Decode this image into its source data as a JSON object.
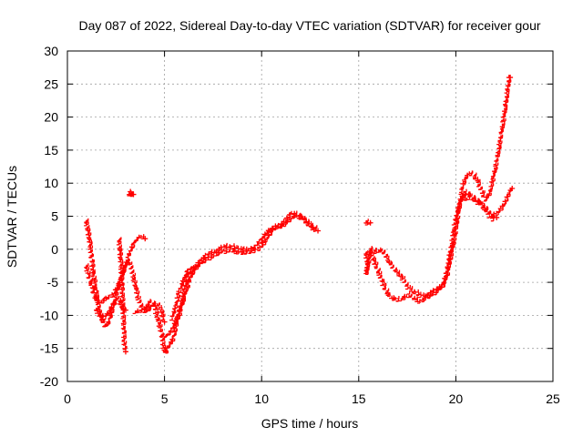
{
  "chart_data": {
    "type": "scatter",
    "title": "Day 087 of 2022, Sidereal Day-to-day VTEC variation (SDTVAR) for receiver gour",
    "xlabel": "GPS time / hours",
    "ylabel": "SDTVAR / TECUs",
    "xlim": [
      0,
      25
    ],
    "ylim": [
      -20,
      30
    ],
    "xticks": [
      0,
      5,
      10,
      15,
      20,
      25
    ],
    "yticks": [
      -20,
      -15,
      -10,
      -5,
      0,
      5,
      10,
      15,
      20,
      25,
      30
    ],
    "xtick_labels": [
      "0",
      "5",
      "10",
      "15",
      "20",
      "25"
    ],
    "ytick_labels": [
      "-20",
      "-15",
      "-10",
      "-5",
      "0",
      "5",
      "10",
      "15",
      "20",
      "25",
      "30"
    ],
    "grid": true,
    "marker": "plus",
    "color": "#ff0000",
    "series": [
      {
        "name": "track-a",
        "points": [
          [
            1.0,
            4.3
          ],
          [
            1.1,
            3.0
          ],
          [
            1.2,
            1.0
          ],
          [
            1.3,
            -1.5
          ],
          [
            1.4,
            -4.0
          ],
          [
            1.5,
            -6.0
          ],
          [
            1.6,
            -8.0
          ],
          [
            1.7,
            -9.5
          ],
          [
            1.8,
            -10.5
          ],
          [
            1.9,
            -11.3
          ],
          [
            2.0,
            -11.8
          ],
          [
            2.1,
            -11.5
          ],
          [
            2.2,
            -10.8
          ],
          [
            2.3,
            -10.0
          ],
          [
            2.4,
            -9.0
          ],
          [
            2.5,
            -8.0
          ],
          [
            2.6,
            -7.5
          ],
          [
            2.7,
            -7.8
          ],
          [
            2.8,
            -8.5
          ],
          [
            2.9,
            -9.0
          ],
          [
            3.0,
            -9.2
          ]
        ]
      },
      {
        "name": "track-b",
        "points": [
          [
            1.0,
            -2.5
          ],
          [
            1.1,
            -3.5
          ],
          [
            1.2,
            -4.5
          ],
          [
            1.3,
            -5.5
          ],
          [
            1.4,
            -6.5
          ],
          [
            1.5,
            -7.5
          ],
          [
            1.6,
            -7.8
          ],
          [
            1.7,
            -8.0
          ],
          [
            1.8,
            -8.0
          ],
          [
            1.9,
            -7.8
          ],
          [
            2.0,
            -7.5
          ],
          [
            2.2,
            -7.2
          ],
          [
            2.4,
            -7.0
          ],
          [
            2.6,
            -6.0
          ],
          [
            2.8,
            -4.5
          ],
          [
            3.0,
            -3.0
          ],
          [
            3.2,
            -1.0
          ],
          [
            3.4,
            0.5
          ],
          [
            3.6,
            1.5
          ],
          [
            3.8,
            1.8
          ],
          [
            4.0,
            1.6
          ]
        ]
      },
      {
        "name": "track-c",
        "points": [
          [
            1.5,
            -9.0
          ],
          [
            1.7,
            -10.0
          ],
          [
            1.9,
            -10.5
          ],
          [
            2.1,
            -10.0
          ],
          [
            2.3,
            -9.0
          ],
          [
            2.5,
            -7.5
          ],
          [
            2.7,
            -5.5
          ],
          [
            2.9,
            -3.5
          ],
          [
            3.1,
            -2.0
          ],
          [
            3.3,
            -2.5
          ],
          [
            3.5,
            -5.0
          ],
          [
            3.7,
            -7.5
          ],
          [
            3.9,
            -9.0
          ],
          [
            4.1,
            -9.5
          ],
          [
            4.3,
            -9.0
          ],
          [
            4.5,
            -8.5
          ],
          [
            4.7,
            -8.5
          ],
          [
            4.9,
            -9.5
          ],
          [
            5.0,
            -11.0
          ]
        ]
      },
      {
        "name": "track-d",
        "points": [
          [
            3.5,
            -9.5
          ],
          [
            3.7,
            -9.5
          ],
          [
            3.9,
            -9.4
          ],
          [
            4.1,
            -9.0
          ],
          [
            4.3,
            -8.0
          ],
          [
            4.5,
            -8.5
          ],
          [
            4.7,
            -10.5
          ],
          [
            4.9,
            -13.0
          ],
          [
            5.0,
            -15.0
          ],
          [
            5.1,
            -15.8
          ],
          [
            5.2,
            -15.0
          ],
          [
            5.3,
            -14.5
          ],
          [
            5.5,
            -13.5
          ],
          [
            5.7,
            -11.0
          ],
          [
            5.9,
            -9.0
          ],
          [
            6.1,
            -7.0
          ],
          [
            6.3,
            -5.0
          ],
          [
            6.5,
            -3.5
          ],
          [
            6.7,
            -2.8
          ],
          [
            7.0,
            -2.0
          ],
          [
            7.3,
            -1.5
          ],
          [
            7.6,
            -1.0
          ],
          [
            8.0,
            -0.5
          ],
          [
            8.4,
            -0.2
          ],
          [
            8.8,
            -0.5
          ],
          [
            9.2,
            -0.6
          ],
          [
            9.6,
            -0.4
          ],
          [
            10.0,
            0.2
          ],
          [
            10.3,
            1.5
          ],
          [
            10.6,
            2.8
          ],
          [
            10.9,
            3.3
          ],
          [
            11.2,
            3.5
          ],
          [
            11.5,
            4.5
          ],
          [
            11.8,
            5.0
          ],
          [
            12.2,
            4.5
          ],
          [
            12.6,
            3.5
          ],
          [
            12.9,
            2.8
          ]
        ]
      },
      {
        "name": "track-e",
        "points": [
          [
            5.0,
            -13.5
          ],
          [
            5.2,
            -13.0
          ],
          [
            5.4,
            -12.5
          ],
          [
            5.6,
            -11.0
          ],
          [
            5.8,
            -9.5
          ],
          [
            6.0,
            -7.0
          ],
          [
            6.2,
            -4.5
          ],
          [
            6.4,
            -3.5
          ],
          [
            6.7,
            -2.5
          ],
          [
            7.0,
            -1.5
          ],
          [
            7.3,
            -0.8
          ],
          [
            7.7,
            -0.3
          ],
          [
            8.0,
            0.2
          ],
          [
            8.4,
            0.4
          ],
          [
            8.8,
            0.0
          ],
          [
            9.2,
            -0.2
          ],
          [
            9.6,
            0.0
          ],
          [
            10.0,
            1.2
          ],
          [
            10.3,
            2.5
          ],
          [
            10.6,
            3.2
          ],
          [
            10.9,
            3.4
          ],
          [
            11.2,
            4.0
          ],
          [
            11.5,
            5.2
          ],
          [
            11.8,
            5.3
          ],
          [
            12.1,
            4.8
          ],
          [
            12.4,
            4.0
          ],
          [
            12.7,
            3.0
          ]
        ]
      },
      {
        "name": "track-f",
        "points": [
          [
            5.4,
            -10.5
          ],
          [
            5.6,
            -9.0
          ],
          [
            5.8,
            -6.5
          ],
          [
            6.0,
            -5.0
          ],
          [
            6.2,
            -3.5
          ],
          [
            6.5,
            -2.8
          ]
        ]
      },
      {
        "name": "track-g",
        "points": [
          [
            2.7,
            1.5
          ],
          [
            2.75,
            0.0
          ],
          [
            2.8,
            -2.0
          ],
          [
            2.85,
            -5.0
          ],
          [
            2.9,
            -8.0
          ],
          [
            2.95,
            -12.0
          ],
          [
            3.0,
            -15.5
          ]
        ]
      },
      {
        "name": "track-h",
        "points": [
          [
            3.2,
            8.5
          ],
          [
            3.25,
            8.2
          ],
          [
            3.3,
            8.6
          ],
          [
            3.35,
            8.0
          ],
          [
            3.4,
            8.3
          ]
        ]
      },
      {
        "name": "track-i",
        "points": [
          [
            15.4,
            4.2
          ],
          [
            15.5,
            3.8
          ],
          [
            15.6,
            4.0
          ]
        ]
      },
      {
        "name": "track-j",
        "points": [
          [
            15.4,
            -0.5
          ],
          [
            15.5,
            -2.0
          ],
          [
            15.45,
            -3.8
          ],
          [
            15.6,
            -1.0
          ],
          [
            15.7,
            0.0
          ],
          [
            15.9,
            -0.5
          ],
          [
            16.1,
            -0.2
          ],
          [
            16.3,
            -0.4
          ],
          [
            16.5,
            -1.5
          ],
          [
            16.7,
            -2.5
          ],
          [
            17.0,
            -3.5
          ],
          [
            17.3,
            -4.5
          ],
          [
            17.6,
            -5.8
          ],
          [
            17.9,
            -6.5
          ],
          [
            18.2,
            -7.0
          ],
          [
            18.5,
            -7.2
          ],
          [
            18.8,
            -6.5
          ],
          [
            19.1,
            -6.0
          ],
          [
            19.4,
            -5.5
          ],
          [
            19.6,
            -4.0
          ],
          [
            19.8,
            -1.0
          ],
          [
            20.0,
            2.0
          ],
          [
            20.2,
            6.0
          ],
          [
            20.4,
            9.5
          ],
          [
            20.6,
            11.0
          ],
          [
            20.8,
            11.5
          ],
          [
            21.0,
            11.0
          ],
          [
            21.2,
            10.0
          ],
          [
            21.4,
            8.5
          ],
          [
            21.6,
            7.5
          ],
          [
            21.8,
            8.5
          ],
          [
            22.0,
            11.0
          ],
          [
            22.2,
            14.0
          ],
          [
            22.4,
            17.5
          ],
          [
            22.6,
            21.5
          ],
          [
            22.8,
            26.0
          ]
        ]
      },
      {
        "name": "track-k",
        "points": [
          [
            15.6,
            -0.5
          ],
          [
            15.8,
            -1.5
          ],
          [
            16.0,
            -3.0
          ],
          [
            16.2,
            -4.5
          ],
          [
            16.4,
            -6.0
          ],
          [
            16.6,
            -7.0
          ],
          [
            16.8,
            -7.5
          ],
          [
            17.0,
            -7.8
          ],
          [
            17.3,
            -7.5
          ],
          [
            17.6,
            -7.0
          ],
          [
            17.9,
            -7.5
          ],
          [
            18.2,
            -8.0
          ],
          [
            18.5,
            -7.5
          ],
          [
            18.8,
            -7.0
          ],
          [
            19.1,
            -6.5
          ],
          [
            19.4,
            -5.5
          ],
          [
            19.6,
            -3.0
          ],
          [
            19.8,
            0.0
          ],
          [
            20.0,
            4.0
          ],
          [
            20.2,
            6.5
          ],
          [
            20.4,
            7.8
          ],
          [
            20.6,
            8.5
          ],
          [
            20.8,
            8.0
          ],
          [
            21.0,
            7.5
          ],
          [
            21.3,
            7.0
          ],
          [
            21.6,
            6.0
          ],
          [
            21.9,
            5.0
          ],
          [
            22.2,
            5.5
          ],
          [
            22.5,
            6.5
          ],
          [
            22.8,
            8.5
          ],
          [
            22.9,
            9.2
          ]
        ]
      },
      {
        "name": "track-l",
        "points": [
          [
            20.4,
            8.0
          ],
          [
            20.6,
            7.5
          ],
          [
            20.8,
            7.8
          ],
          [
            21.0,
            7.5
          ],
          [
            21.3,
            6.8
          ],
          [
            21.6,
            5.8
          ],
          [
            21.9,
            4.5
          ],
          [
            22.1,
            4.8
          ]
        ]
      }
    ]
  }
}
